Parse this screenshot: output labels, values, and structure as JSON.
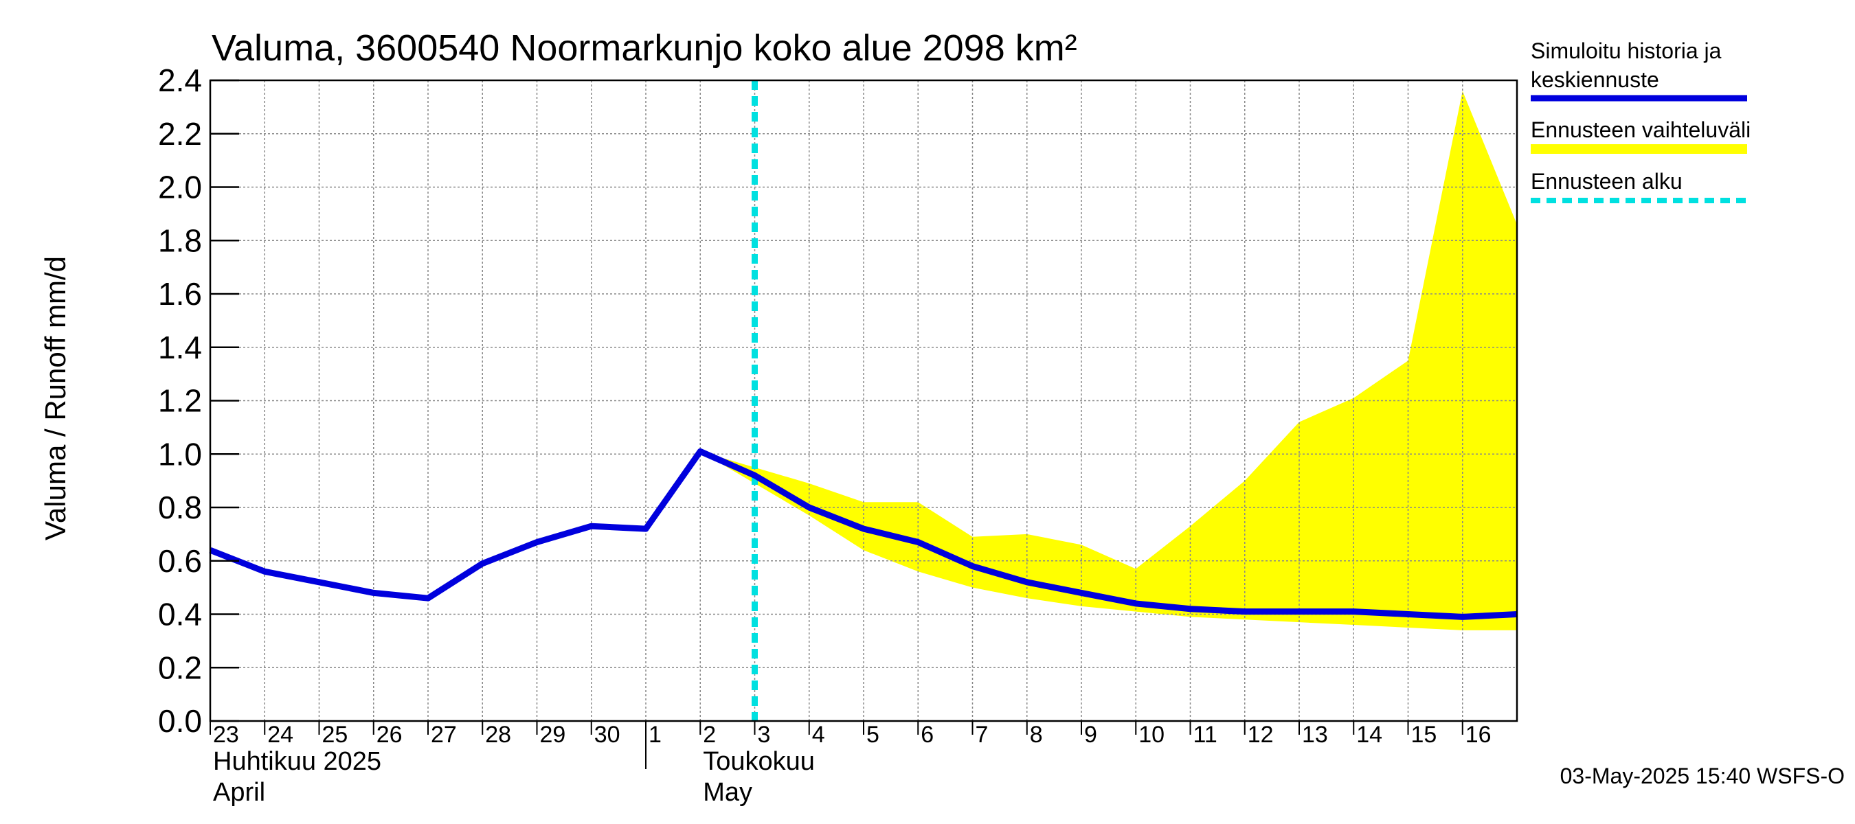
{
  "chart_data": {
    "type": "area",
    "title": "Valuma, 3600540 Noormarkunjo koko alue 2098 km²",
    "ylabel": "Valuma / Runoff     mm/d",
    "ylim": [
      0,
      2.4
    ],
    "yticks": [
      "0.0",
      "0.2",
      "0.4",
      "0.6",
      "0.8",
      "1.0",
      "1.2",
      "1.4",
      "1.6",
      "1.8",
      "2.0",
      "2.2",
      "2.4"
    ],
    "xlim": [
      "2025-04-23",
      "2025-05-17"
    ],
    "x_tick_labels": [
      "23",
      "24",
      "25",
      "26",
      "27",
      "28",
      "29",
      "30",
      "1",
      "2",
      "3",
      "4",
      "5",
      "6",
      "7",
      "8",
      "9",
      "10",
      "11",
      "12",
      "13",
      "14",
      "15",
      "16"
    ],
    "month_labels": [
      {
        "line1": "Huhtikuu  2025",
        "line2": "April"
      },
      {
        "line1": "Toukokuu",
        "line2": "May"
      }
    ],
    "grid": true,
    "legend_position": "right",
    "forecast_start": "2025-05-03",
    "series": [
      {
        "name": "Simuloitu historia ja keskiennuste",
        "color": "#0000dd",
        "x": [
          "2025-04-23",
          "2025-04-24",
          "2025-04-25",
          "2025-04-26",
          "2025-04-27",
          "2025-04-28",
          "2025-04-29",
          "2025-04-30",
          "2025-05-01",
          "2025-05-02",
          "2025-05-03",
          "2025-05-04",
          "2025-05-05",
          "2025-05-06",
          "2025-05-07",
          "2025-05-08",
          "2025-05-09",
          "2025-05-10",
          "2025-05-11",
          "2025-05-12",
          "2025-05-13",
          "2025-05-14",
          "2025-05-15",
          "2025-05-16",
          "2025-05-17"
        ],
        "y": [
          0.64,
          0.56,
          0.52,
          0.48,
          0.46,
          0.59,
          0.67,
          0.73,
          0.72,
          1.01,
          0.92,
          0.8,
          0.72,
          0.67,
          0.58,
          0.52,
          0.48,
          0.44,
          0.42,
          0.41,
          0.41,
          0.41,
          0.4,
          0.39,
          0.4
        ]
      },
      {
        "name": "Ennusteen vaihteluväli",
        "color": "#ffff00",
        "x": [
          "2025-05-02",
          "2025-05-03",
          "2025-05-04",
          "2025-05-05",
          "2025-05-06",
          "2025-05-07",
          "2025-05-08",
          "2025-05-09",
          "2025-05-10",
          "2025-05-11",
          "2025-05-12",
          "2025-05-13",
          "2025-05-14",
          "2025-05-15",
          "2025-05-16",
          "2025-05-17"
        ],
        "upper": [
          1.01,
          0.95,
          0.89,
          0.82,
          0.82,
          0.69,
          0.7,
          0.66,
          0.57,
          0.73,
          0.9,
          1.12,
          1.21,
          1.35,
          2.36,
          1.86
        ],
        "lower": [
          1.01,
          0.89,
          0.77,
          0.64,
          0.56,
          0.5,
          0.46,
          0.43,
          0.41,
          0.39,
          0.38,
          0.37,
          0.36,
          0.35,
          0.34,
          0.34
        ]
      }
    ],
    "legend": [
      {
        "label": "Simuloitu historia ja keskiennuste",
        "color": "#0000dd",
        "style": "solid"
      },
      {
        "label": "Ennusteen vaihteluväli",
        "color": "#ffff00",
        "style": "solid"
      },
      {
        "label": "Ennusteen alku",
        "color": "#00e0e0",
        "style": "dashed"
      }
    ],
    "timestamp": "03-May-2025 15:40 WSFS-O"
  }
}
